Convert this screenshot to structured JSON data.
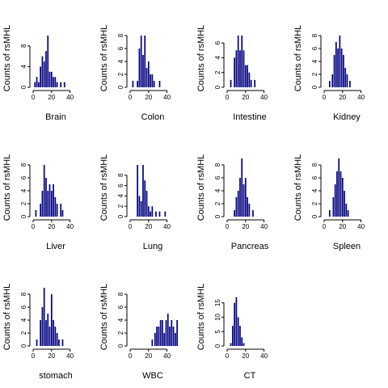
{
  "figure": {
    "ylabel": "Counts of rsMHL",
    "bar_color": "#000080"
  },
  "chart_data": [
    {
      "type": "bar",
      "title": "",
      "xlabel": "Brain",
      "ylabel": "Counts of rsMHL",
      "xlim": [
        0,
        50
      ],
      "x_ticks": [
        0,
        20,
        40
      ],
      "ylim": [
        0,
        10
      ],
      "y_ticks": [
        0,
        4,
        8
      ],
      "bin_width": 1.5,
      "bins": [
        {
          "x": 2,
          "v": 1
        },
        {
          "x": 4,
          "v": 2
        },
        {
          "x": 6,
          "v": 1
        },
        {
          "x": 8,
          "v": 4
        },
        {
          "x": 10,
          "v": 6
        },
        {
          "x": 12,
          "v": 5
        },
        {
          "x": 14,
          "v": 7
        },
        {
          "x": 16,
          "v": 10
        },
        {
          "x": 18,
          "v": 3
        },
        {
          "x": 20,
          "v": 3
        },
        {
          "x": 22,
          "v": 2
        },
        {
          "x": 24,
          "v": 2
        },
        {
          "x": 26,
          "v": 1
        },
        {
          "x": 30,
          "v": 1
        },
        {
          "x": 34,
          "v": 1
        }
      ]
    },
    {
      "type": "bar",
      "title": "",
      "xlabel": "Colon",
      "ylabel": "Counts of rsMHL",
      "xlim": [
        0,
        50
      ],
      "x_ticks": [
        0,
        20,
        40
      ],
      "ylim": [
        0,
        8
      ],
      "y_ticks": [
        0,
        2,
        4,
        6,
        8
      ],
      "bin_width": 1.5,
      "bins": [
        {
          "x": 3,
          "v": 1
        },
        {
          "x": 8,
          "v": 1
        },
        {
          "x": 10,
          "v": 6
        },
        {
          "x": 12,
          "v": 8
        },
        {
          "x": 14,
          "v": 5
        },
        {
          "x": 16,
          "v": 8
        },
        {
          "x": 18,
          "v": 3
        },
        {
          "x": 20,
          "v": 4
        },
        {
          "x": 22,
          "v": 2
        },
        {
          "x": 24,
          "v": 2
        },
        {
          "x": 26,
          "v": 1
        },
        {
          "x": 32,
          "v": 1
        }
      ]
    },
    {
      "type": "bar",
      "title": "",
      "xlabel": "Intestine",
      "ylabel": "Counts of rsMHL",
      "xlim": [
        0,
        50
      ],
      "x_ticks": [
        0,
        20,
        40
      ],
      "ylim": [
        0,
        7
      ],
      "y_ticks": [
        0,
        2,
        4,
        6
      ],
      "bin_width": 1.5,
      "bins": [
        {
          "x": 4,
          "v": 1
        },
        {
          "x": 8,
          "v": 4
        },
        {
          "x": 10,
          "v": 5
        },
        {
          "x": 12,
          "v": 7
        },
        {
          "x": 14,
          "v": 5
        },
        {
          "x": 16,
          "v": 7
        },
        {
          "x": 18,
          "v": 5
        },
        {
          "x": 20,
          "v": 3
        },
        {
          "x": 22,
          "v": 3
        },
        {
          "x": 24,
          "v": 2
        },
        {
          "x": 26,
          "v": 1
        },
        {
          "x": 30,
          "v": 1
        }
      ]
    },
    {
      "type": "bar",
      "title": "",
      "xlabel": "Kidney",
      "ylabel": "Counts of rsMHL",
      "xlim": [
        0,
        50
      ],
      "x_ticks": [
        0,
        20,
        40
      ],
      "ylim": [
        0,
        8
      ],
      "y_ticks": [
        0,
        2,
        4,
        6,
        8
      ],
      "bin_width": 1.5,
      "bins": [
        {
          "x": 6,
          "v": 1
        },
        {
          "x": 9,
          "v": 2
        },
        {
          "x": 11,
          "v": 5
        },
        {
          "x": 13,
          "v": 7
        },
        {
          "x": 15,
          "v": 6
        },
        {
          "x": 17,
          "v": 8
        },
        {
          "x": 19,
          "v": 6
        },
        {
          "x": 21,
          "v": 5
        },
        {
          "x": 23,
          "v": 3
        },
        {
          "x": 25,
          "v": 2
        },
        {
          "x": 28,
          "v": 1
        }
      ]
    },
    {
      "type": "bar",
      "title": "",
      "xlabel": "Liver",
      "ylabel": "Counts of rsMHL",
      "xlim": [
        0,
        50
      ],
      "x_ticks": [
        0,
        20,
        40
      ],
      "ylim": [
        0,
        8
      ],
      "y_ticks": [
        0,
        2,
        4,
        6,
        8
      ],
      "bin_width": 1.5,
      "bins": [
        {
          "x": 3,
          "v": 1
        },
        {
          "x": 8,
          "v": 2
        },
        {
          "x": 10,
          "v": 4
        },
        {
          "x": 12,
          "v": 8
        },
        {
          "x": 14,
          "v": 6
        },
        {
          "x": 16,
          "v": 4
        },
        {
          "x": 18,
          "v": 5
        },
        {
          "x": 20,
          "v": 4
        },
        {
          "x": 22,
          "v": 5
        },
        {
          "x": 24,
          "v": 3
        },
        {
          "x": 26,
          "v": 2
        },
        {
          "x": 30,
          "v": 2
        },
        {
          "x": 32,
          "v": 1
        }
      ]
    },
    {
      "type": "bar",
      "title": "",
      "xlabel": "Lung",
      "ylabel": "Counts of rsMHL",
      "xlim": [
        0,
        50
      ],
      "x_ticks": [
        0,
        20,
        40
      ],
      "ylim": [
        0,
        10
      ],
      "y_ticks": [
        0,
        2,
        4,
        6,
        8
      ],
      "bin_width": 1.5,
      "bins": [
        {
          "x": 8,
          "v": 10
        },
        {
          "x": 10,
          "v": 4
        },
        {
          "x": 12,
          "v": 3
        },
        {
          "x": 14,
          "v": 10
        },
        {
          "x": 16,
          "v": 7
        },
        {
          "x": 18,
          "v": 5
        },
        {
          "x": 20,
          "v": 2
        },
        {
          "x": 22,
          "v": 1
        },
        {
          "x": 24,
          "v": 2
        },
        {
          "x": 28,
          "v": 1
        },
        {
          "x": 32,
          "v": 1
        },
        {
          "x": 38,
          "v": 1
        }
      ]
    },
    {
      "type": "bar",
      "title": "",
      "xlabel": "Pancreas",
      "ylabel": "Counts of rsMHL",
      "xlim": [
        0,
        50
      ],
      "x_ticks": [
        0,
        20,
        40
      ],
      "ylim": [
        0,
        8
      ],
      "y_ticks": [
        0,
        2,
        4,
        6,
        8
      ],
      "bin_width": 1.5,
      "bins": [
        {
          "x": 8,
          "v": 1
        },
        {
          "x": 10,
          "v": 3
        },
        {
          "x": 12,
          "v": 4
        },
        {
          "x": 14,
          "v": 6
        },
        {
          "x": 16,
          "v": 9
        },
        {
          "x": 18,
          "v": 5
        },
        {
          "x": 20,
          "v": 6
        },
        {
          "x": 22,
          "v": 3
        },
        {
          "x": 24,
          "v": 2
        },
        {
          "x": 28,
          "v": 1
        }
      ]
    },
    {
      "type": "bar",
      "title": "",
      "xlabel": "Spleen",
      "ylabel": "Counts of rsMHL",
      "xlim": [
        0,
        50
      ],
      "x_ticks": [
        0,
        20,
        40
      ],
      "ylim": [
        0,
        8
      ],
      "y_ticks": [
        0,
        2,
        4,
        6,
        8
      ],
      "bin_width": 1.5,
      "bins": [
        {
          "x": 6,
          "v": 1
        },
        {
          "x": 10,
          "v": 3
        },
        {
          "x": 12,
          "v": 5
        },
        {
          "x": 14,
          "v": 7
        },
        {
          "x": 16,
          "v": 9
        },
        {
          "x": 18,
          "v": 7
        },
        {
          "x": 20,
          "v": 6
        },
        {
          "x": 22,
          "v": 4
        },
        {
          "x": 24,
          "v": 2
        },
        {
          "x": 26,
          "v": 1
        }
      ]
    },
    {
      "type": "bar",
      "title": "",
      "xlabel": "stomach",
      "ylabel": "Counts of rsMHL",
      "xlim": [
        0,
        50
      ],
      "x_ticks": [
        0,
        20,
        40
      ],
      "ylim": [
        0,
        8
      ],
      "y_ticks": [
        0,
        2,
        4,
        6,
        8
      ],
      "bin_width": 1.5,
      "bins": [
        {
          "x": 4,
          "v": 1
        },
        {
          "x": 8,
          "v": 4
        },
        {
          "x": 10,
          "v": 6
        },
        {
          "x": 12,
          "v": 9
        },
        {
          "x": 14,
          "v": 4
        },
        {
          "x": 16,
          "v": 5
        },
        {
          "x": 18,
          "v": 3
        },
        {
          "x": 20,
          "v": 8
        },
        {
          "x": 22,
          "v": 4
        },
        {
          "x": 24,
          "v": 3
        },
        {
          "x": 26,
          "v": 2
        },
        {
          "x": 28,
          "v": 1
        },
        {
          "x": 32,
          "v": 1
        }
      ]
    },
    {
      "type": "bar",
      "title": "",
      "xlabel": "WBC",
      "ylabel": "Counts of rsMHL",
      "xlim": [
        0,
        50
      ],
      "x_ticks": [
        0,
        20,
        40
      ],
      "ylim": [
        0,
        8
      ],
      "y_ticks": [
        0,
        2,
        4,
        6,
        8
      ],
      "bin_width": 1.5,
      "bins": [
        {
          "x": 24,
          "v": 1
        },
        {
          "x": 27,
          "v": 2
        },
        {
          "x": 29,
          "v": 3
        },
        {
          "x": 31,
          "v": 3
        },
        {
          "x": 33,
          "v": 4
        },
        {
          "x": 35,
          "v": 4
        },
        {
          "x": 37,
          "v": 2
        },
        {
          "x": 39,
          "v": 4
        },
        {
          "x": 41,
          "v": 5
        },
        {
          "x": 43,
          "v": 3
        },
        {
          "x": 45,
          "v": 4
        },
        {
          "x": 47,
          "v": 3
        },
        {
          "x": 49,
          "v": 2
        },
        {
          "x": 51,
          "v": 4
        }
      ]
    },
    {
      "type": "bar",
      "title": "",
      "xlabel": "CT",
      "ylabel": "Counts of rsMHL",
      "xlim": [
        0,
        50
      ],
      "x_ticks": [
        0,
        20,
        40
      ],
      "ylim": [
        0,
        18
      ],
      "y_ticks": [
        0,
        5,
        10,
        15
      ],
      "bin_width": 1.5,
      "bins": [
        {
          "x": 4,
          "v": 1
        },
        {
          "x": 6,
          "v": 7
        },
        {
          "x": 8,
          "v": 15
        },
        {
          "x": 10,
          "v": 17
        },
        {
          "x": 12,
          "v": 10
        },
        {
          "x": 14,
          "v": 7
        },
        {
          "x": 16,
          "v": 3
        },
        {
          "x": 18,
          "v": 1
        }
      ]
    }
  ]
}
